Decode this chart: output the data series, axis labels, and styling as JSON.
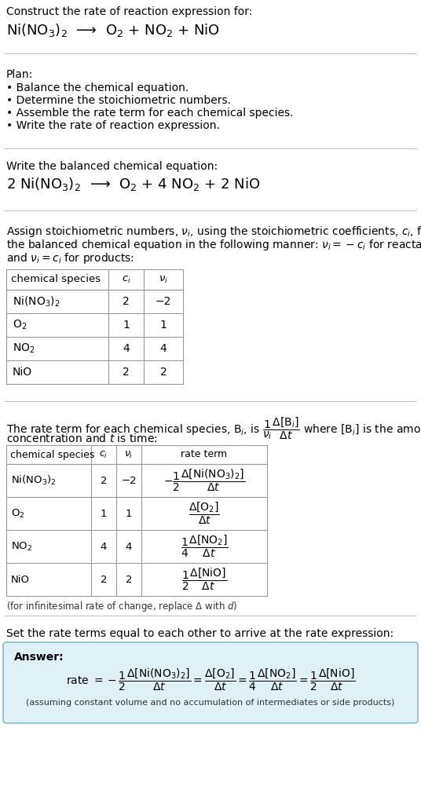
{
  "title_line1": "Construct the rate of reaction expression for:",
  "reaction_unbalanced": "Ni(NO$_3$)$_2$  ⟶  O$_2$ + NO$_2$ + NiO",
  "plan_header": "Plan:",
  "plan_items": [
    "• Balance the chemical equation.",
    "• Determine the stoichiometric numbers.",
    "• Assemble the rate term for each chemical species.",
    "• Write the rate of reaction expression."
  ],
  "balanced_header": "Write the balanced chemical equation:",
  "reaction_balanced": "2 Ni(NO$_3$)$_2$  ⟶  O$_2$ + 4 NO$_2$ + 2 NiO",
  "stoich_intro_lines": [
    "Assign stoichiometric numbers, $\\nu_i$, using the stoichiometric coefficients, $c_i$, from",
    "the balanced chemical equation in the following manner: $\\nu_i = -c_i$ for reactants",
    "and $\\nu_i = c_i$ for products:"
  ],
  "table1_headers": [
    "chemical species",
    "$c_i$",
    "$\\nu_i$"
  ],
  "table1_rows": [
    [
      "Ni(NO$_3$)$_2$",
      "2",
      "−2"
    ],
    [
      "O$_2$",
      "1",
      "1"
    ],
    [
      "NO$_2$",
      "4",
      "4"
    ],
    [
      "NiO",
      "2",
      "2"
    ]
  ],
  "rate_intro_line1": "The rate term for each chemical species, B$_i$, is $\\dfrac{1}{\\nu_i}\\dfrac{\\Delta[\\mathrm{B}_i]}{\\Delta t}$ where [B$_i$] is the amount",
  "rate_intro_line2": "concentration and $t$ is time:",
  "table2_headers": [
    "chemical species",
    "$c_i$",
    "$\\nu_i$",
    "rate term"
  ],
  "table2_rows": [
    [
      "Ni(NO$_3$)$_2$",
      "2",
      "−2",
      "$-\\dfrac{1}{2}\\dfrac{\\Delta[\\mathrm{Ni(NO_3)_2}]}{\\Delta t}$"
    ],
    [
      "O$_2$",
      "1",
      "1",
      "$\\dfrac{\\Delta[\\mathrm{O_2}]}{\\Delta t}$"
    ],
    [
      "NO$_2$",
      "4",
      "4",
      "$\\dfrac{1}{4}\\dfrac{\\Delta[\\mathrm{NO_2}]}{\\Delta t}$"
    ],
    [
      "NiO",
      "2",
      "2",
      "$\\dfrac{1}{2}\\dfrac{\\Delta[\\mathrm{NiO}]}{\\Delta t}$"
    ]
  ],
  "infinitesimal_note": "(for infinitesimal rate of change, replace Δ with $d$)",
  "set_equal_text": "Set the rate terms equal to each other to arrive at the rate expression:",
  "answer_label": "Answer:",
  "answer_box_color": "#dff0f7",
  "answer_box_border": "#88bbcc",
  "answer_formula": "rate $= -\\dfrac{1}{2}\\dfrac{\\Delta[\\mathrm{Ni(NO_3)_2}]}{\\Delta t} = \\dfrac{\\Delta[\\mathrm{O_2}]}{\\Delta t} = \\dfrac{1}{4}\\dfrac{\\Delta[\\mathrm{NO_2}]}{\\Delta t} = \\dfrac{1}{2}\\dfrac{\\Delta[\\mathrm{NiO}]}{\\Delta t}$",
  "answer_note": "(assuming constant volume and no accumulation of intermediates or side products)",
  "bg_color": "#ffffff",
  "text_color": "#000000",
  "table_line_color": "#999999",
  "sep_line_color": "#bbbbbb"
}
